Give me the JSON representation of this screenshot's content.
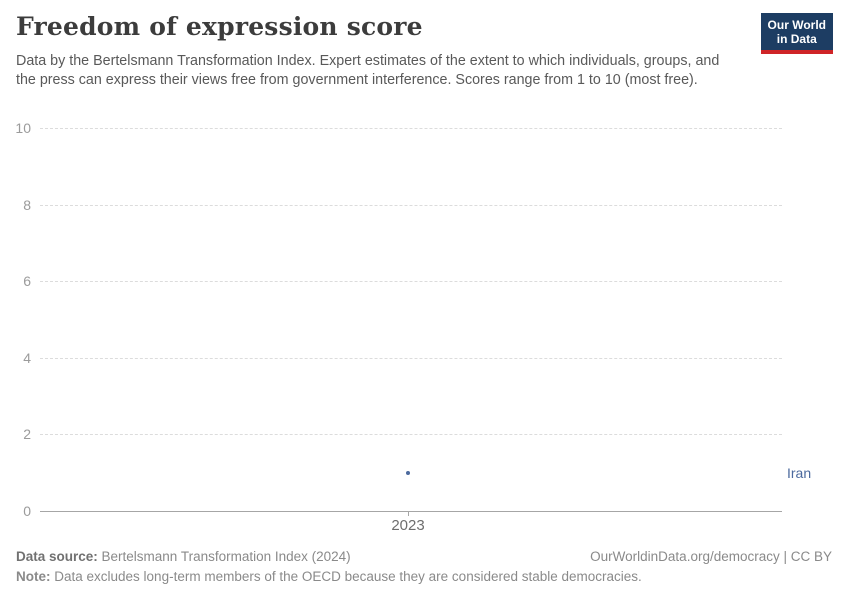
{
  "header": {
    "title": "Freedom of expression score",
    "subtitle": "Data by the Bertelsmann Transformation Index. Expert estimates of the extent to which individuals, groups, and the press can express their views free from government interference. Scores range from 1 to 10 (most free).",
    "logo": {
      "line1": "Our World",
      "line2": "in Data",
      "bg_color": "#1d3d63",
      "accent_color": "#cf2427"
    }
  },
  "chart_data": {
    "type": "scatter",
    "title": "Freedom of expression score",
    "x": [
      2023
    ],
    "series": [
      {
        "name": "Iran",
        "values": [
          1
        ],
        "color": "#4c6a9e"
      }
    ],
    "xlabel": "",
    "ylabel": "",
    "ylim": [
      0,
      10
    ],
    "yticks": [
      0,
      2,
      4,
      6,
      8,
      10
    ],
    "xticks": [
      2023
    ],
    "grid": "horizontal-dashed",
    "legend_position": "right-of-point"
  },
  "footer": {
    "source_label": "Data source:",
    "source_text": " Bertelsmann Transformation Index (2024)",
    "attribution": "OurWorldinData.org/democracy | CC BY",
    "note_label": "Note:",
    "note_text": " Data excludes long-term members of the OECD because they are considered stable democracies."
  }
}
